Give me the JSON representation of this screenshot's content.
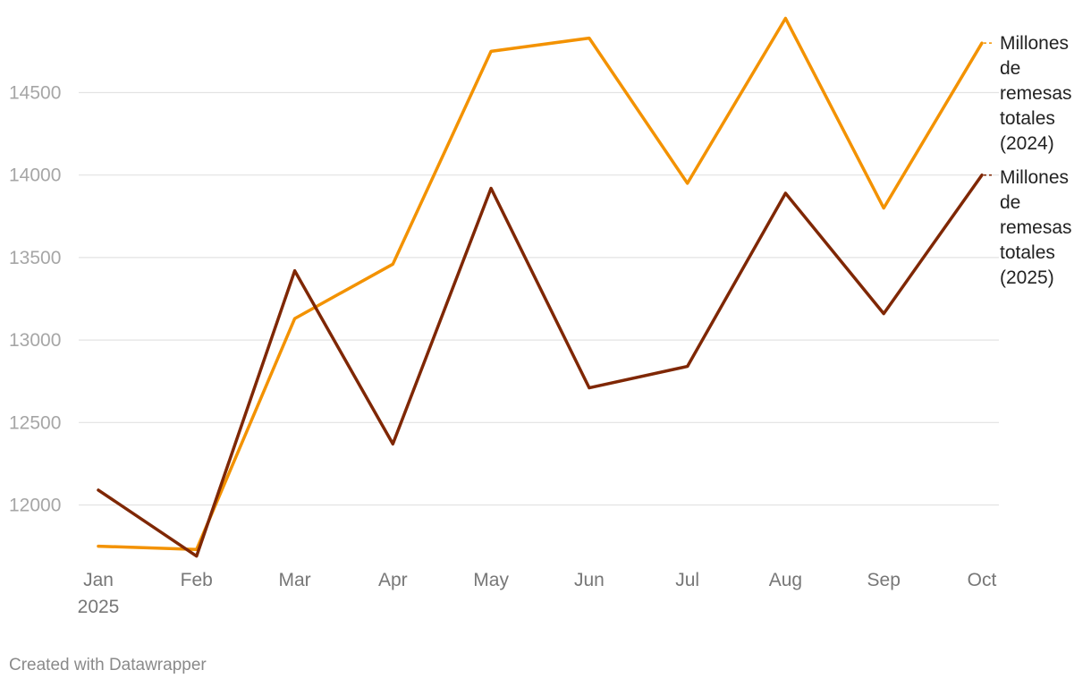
{
  "chart_data": {
    "type": "line",
    "title": "",
    "xlabel": "",
    "ylabel": "",
    "categories": [
      "Jan",
      "Feb",
      "Mar",
      "Apr",
      "May",
      "Jun",
      "Jul",
      "Aug",
      "Sep",
      "Oct"
    ],
    "x_tick_sublabel": {
      "Jan": "2025"
    },
    "y_ticks": [
      12000,
      12500,
      13000,
      13500,
      14000,
      14500
    ],
    "ylim": [
      11680,
      15000
    ],
    "grid": "horizontal",
    "legend": "inline-right",
    "series": [
      {
        "name_lines": [
          "Millones",
          "de",
          "remesas",
          "totales",
          "(2024)"
        ],
        "color": "#f39200",
        "values": [
          11750,
          11730,
          13130,
          13460,
          14750,
          14830,
          13950,
          14950,
          13800,
          14800
        ]
      },
      {
        "name_lines": [
          "Millones",
          "de",
          "remesas",
          "totales",
          "(2025)"
        ],
        "color": "#7f2704",
        "values": [
          12090,
          11690,
          13420,
          12370,
          13920,
          12710,
          12840,
          13890,
          13160,
          14000
        ]
      }
    ]
  },
  "footer": {
    "credit": "Created with Datawrapper"
  }
}
